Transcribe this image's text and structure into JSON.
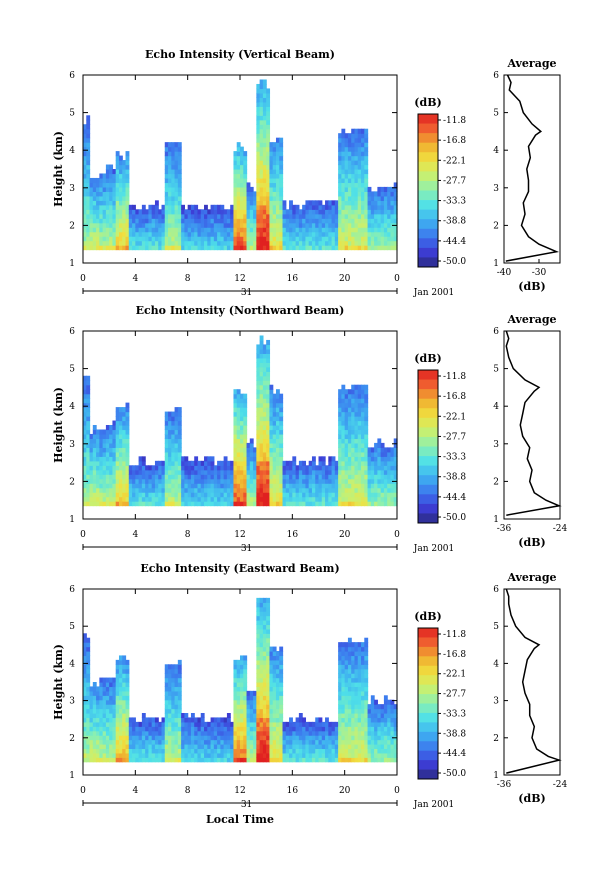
{
  "chart_data": [
    {
      "type": "heatmap",
      "title": "Echo Intensity (Vertical Beam)",
      "ylabel": "Height (km)",
      "xlabel": "",
      "x_ticks": [
        "0",
        "4",
        "8",
        "12",
        "16",
        "20",
        "0"
      ],
      "xlim": [
        0,
        24
      ],
      "y_ticks": [
        "1",
        "2",
        "3",
        "4",
        "5",
        "6"
      ],
      "ylim": [
        1,
        6
      ],
      "date_labels": {
        "day": "31",
        "month_year": "Jan 2001"
      },
      "colorbar": {
        "unit": "(dB)",
        "ticks": [
          "-11.8",
          "-16.8",
          "-22.1",
          "-27.7",
          "-33.3",
          "-38.8",
          "-44.4",
          "-50.0"
        ],
        "range": [
          -50.0,
          -11.8
        ],
        "colors": [
          "#2a2a80",
          "#3d3dd6",
          "#3c78ee",
          "#3fb0f0",
          "#4fe0e8",
          "#8cf0b0",
          "#c8f070",
          "#f0e040",
          "#f0b030",
          "#f06030",
          "#e02020"
        ]
      },
      "columns": [
        {
          "t": [
            0.0,
            0.5
          ],
          "top": 4.8,
          "peak": 1.6,
          "intensity": 0.55
        },
        {
          "t": [
            0.5,
            1.2
          ],
          "top": 3.3,
          "peak": 1.4,
          "intensity": 0.65
        },
        {
          "t": [
            1.2,
            2.6
          ],
          "top": 3.5,
          "peak": 1.5,
          "intensity": 0.6
        },
        {
          "t": [
            2.6,
            3.6
          ],
          "top": 3.9,
          "peak": 1.5,
          "intensity": 0.75
        },
        {
          "t": [
            3.6,
            6.2
          ],
          "top": 2.5,
          "peak": 1.3,
          "intensity": 0.45
        },
        {
          "t": [
            6.2,
            7.6
          ],
          "top": 4.2,
          "peak": 1.5,
          "intensity": 0.6
        },
        {
          "t": [
            7.6,
            11.4
          ],
          "top": 2.5,
          "peak": 1.3,
          "intensity": 0.4
        },
        {
          "t": [
            11.4,
            12.4
          ],
          "top": 4.1,
          "peak": 1.5,
          "intensity": 0.95
        },
        {
          "t": [
            12.4,
            13.2
          ],
          "top": 3.0,
          "peak": 1.4,
          "intensity": 0.6
        },
        {
          "t": [
            13.2,
            14.2
          ],
          "top": 5.8,
          "peak": 2.5,
          "intensity": 0.95
        },
        {
          "t": [
            14.2,
            15.2
          ],
          "top": 4.3,
          "peak": 1.5,
          "intensity": 0.7
        },
        {
          "t": [
            15.2,
            19.4
          ],
          "top": 2.6,
          "peak": 1.3,
          "intensity": 0.45
        },
        {
          "t": [
            19.4,
            21.8
          ],
          "top": 4.5,
          "peak": 1.5,
          "intensity": 0.65
        },
        {
          "t": [
            21.8,
            24.0
          ],
          "top": 3.0,
          "peak": 1.4,
          "intensity": 0.55
        }
      ],
      "profile": {
        "title": "Average",
        "xlabel": "(dB)",
        "x_ticks": [
          "-40",
          "-30"
        ],
        "xlim": [
          -40,
          -24
        ],
        "y_ticks": [
          "1",
          "2",
          "3",
          "4",
          "5",
          "6"
        ],
        "ylim": [
          1,
          6
        ],
        "height_km": [
          1.05,
          1.3,
          1.5,
          1.7,
          2.0,
          2.3,
          2.6,
          2.9,
          3.2,
          3.5,
          3.8,
          4.1,
          4.4,
          4.5,
          4.7,
          5.0,
          5.3,
          5.6,
          5.8,
          6.0
        ],
        "value_db": [
          -39.5,
          -25.0,
          -30.0,
          -33.0,
          -35.0,
          -34.0,
          -34.5,
          -33.0,
          -33.0,
          -33.5,
          -32.5,
          -33.0,
          -31.0,
          -29.5,
          -32.0,
          -34.5,
          -35.5,
          -38.5,
          -38.0,
          -39.0
        ]
      }
    },
    {
      "type": "heatmap",
      "title": "Echo Intensity (Northward Beam)",
      "ylabel": "Height (km)",
      "xlabel": "",
      "x_ticks": [
        "0",
        "4",
        "8",
        "12",
        "16",
        "20",
        "0"
      ],
      "xlim": [
        0,
        24
      ],
      "y_ticks": [
        "1",
        "2",
        "3",
        "4",
        "5",
        "6"
      ],
      "ylim": [
        1,
        6
      ],
      "date_labels": {
        "day": "31",
        "month_year": "Jan 2001"
      },
      "colorbar": {
        "unit": "(dB)",
        "ticks": [
          "-11.8",
          "-16.8",
          "-22.1",
          "-27.7",
          "-33.3",
          "-38.8",
          "-44.4",
          "-50.0"
        ],
        "range": [
          -50.0,
          -11.8
        ],
        "colors": [
          "#2a2a80",
          "#3d3dd6",
          "#3c78ee",
          "#3fb0f0",
          "#4fe0e8",
          "#8cf0b0",
          "#c8f070",
          "#f0e040",
          "#f0b030",
          "#f06030",
          "#e02020"
        ]
      },
      "columns": [
        {
          "t": [
            0.0,
            0.5
          ],
          "top": 4.7,
          "peak": 1.6,
          "intensity": 0.55
        },
        {
          "t": [
            0.5,
            1.2
          ],
          "top": 3.4,
          "peak": 1.4,
          "intensity": 0.65
        },
        {
          "t": [
            1.2,
            2.6
          ],
          "top": 3.5,
          "peak": 1.5,
          "intensity": 0.6
        },
        {
          "t": [
            2.6,
            3.6
          ],
          "top": 4.0,
          "peak": 1.5,
          "intensity": 0.75
        },
        {
          "t": [
            3.6,
            6.2
          ],
          "top": 2.5,
          "peak": 1.3,
          "intensity": 0.45
        },
        {
          "t": [
            6.2,
            7.6
          ],
          "top": 4.0,
          "peak": 1.5,
          "intensity": 0.6
        },
        {
          "t": [
            7.6,
            11.4
          ],
          "top": 2.6,
          "peak": 1.3,
          "intensity": 0.4
        },
        {
          "t": [
            11.4,
            12.4
          ],
          "top": 4.4,
          "peak": 1.5,
          "intensity": 0.95
        },
        {
          "t": [
            12.4,
            13.2
          ],
          "top": 3.0,
          "peak": 1.4,
          "intensity": 0.6
        },
        {
          "t": [
            13.2,
            14.2
          ],
          "top": 5.8,
          "peak": 2.5,
          "intensity": 0.95
        },
        {
          "t": [
            14.2,
            15.2
          ],
          "top": 4.4,
          "peak": 1.5,
          "intensity": 0.7
        },
        {
          "t": [
            15.2,
            19.4
          ],
          "top": 2.6,
          "peak": 1.3,
          "intensity": 0.45
        },
        {
          "t": [
            19.4,
            21.8
          ],
          "top": 4.5,
          "peak": 1.5,
          "intensity": 0.65
        },
        {
          "t": [
            21.8,
            24.0
          ],
          "top": 3.0,
          "peak": 1.4,
          "intensity": 0.55
        }
      ],
      "profile": {
        "title": "Average",
        "xlabel": "(dB)",
        "x_ticks": [
          "-36",
          "-24"
        ],
        "xlim": [
          -36,
          -24
        ],
        "y_ticks": [
          "1",
          "2",
          "3",
          "4",
          "5",
          "6"
        ],
        "ylim": [
          1,
          6
        ],
        "height_km": [
          1.1,
          1.35,
          1.5,
          1.7,
          2.0,
          2.3,
          2.6,
          2.9,
          3.2,
          3.5,
          3.8,
          4.1,
          4.4,
          4.5,
          4.7,
          5.0,
          5.3,
          5.6,
          5.8,
          6.0
        ],
        "value_db": [
          -35.5,
          -24.2,
          -27.0,
          -29.5,
          -30.5,
          -30.0,
          -31.0,
          -30.5,
          -32.0,
          -32.5,
          -32.0,
          -31.5,
          -29.5,
          -28.5,
          -31.5,
          -34.0,
          -35.0,
          -35.5,
          -35.0,
          -35.5
        ]
      }
    },
    {
      "type": "heatmap",
      "title": "Echo Intensity (Eastward Beam)",
      "ylabel": "Height (km)",
      "xlabel": "Local Time",
      "x_ticks": [
        "0",
        "4",
        "8",
        "12",
        "16",
        "20",
        "0"
      ],
      "xlim": [
        0,
        24
      ],
      "y_ticks": [
        "1",
        "2",
        "3",
        "4",
        "5",
        "6"
      ],
      "ylim": [
        1,
        6
      ],
      "date_labels": {
        "day": "31",
        "month_year": "Jan 2001"
      },
      "colorbar": {
        "unit": "(dB)",
        "ticks": [
          "-11.8",
          "-16.8",
          "-22.1",
          "-27.7",
          "-33.3",
          "-38.8",
          "-44.4",
          "-50.0"
        ],
        "range": [
          -50.0,
          -11.8
        ],
        "colors": [
          "#2a2a80",
          "#3d3dd6",
          "#3c78ee",
          "#3fb0f0",
          "#4fe0e8",
          "#8cf0b0",
          "#c8f070",
          "#f0e040",
          "#f0b030",
          "#f06030",
          "#e02020"
        ]
      },
      "columns": [
        {
          "t": [
            0.0,
            0.5
          ],
          "top": 4.8,
          "peak": 1.6,
          "intensity": 0.55
        },
        {
          "t": [
            0.5,
            1.2
          ],
          "top": 3.5,
          "peak": 1.4,
          "intensity": 0.65
        },
        {
          "t": [
            1.2,
            2.6
          ],
          "top": 3.6,
          "peak": 1.5,
          "intensity": 0.6
        },
        {
          "t": [
            2.6,
            3.6
          ],
          "top": 4.1,
          "peak": 1.5,
          "intensity": 0.8
        },
        {
          "t": [
            3.6,
            6.2
          ],
          "top": 2.5,
          "peak": 1.3,
          "intensity": 0.45
        },
        {
          "t": [
            6.2,
            7.6
          ],
          "top": 4.0,
          "peak": 1.5,
          "intensity": 0.6
        },
        {
          "t": [
            7.6,
            11.4
          ],
          "top": 2.6,
          "peak": 1.3,
          "intensity": 0.4
        },
        {
          "t": [
            11.4,
            12.4
          ],
          "top": 4.2,
          "peak": 1.5,
          "intensity": 0.9
        },
        {
          "t": [
            12.4,
            13.2
          ],
          "top": 3.2,
          "peak": 1.4,
          "intensity": 0.6
        },
        {
          "t": [
            13.2,
            14.2
          ],
          "top": 5.8,
          "peak": 2.5,
          "intensity": 0.95
        },
        {
          "t": [
            14.2,
            15.2
          ],
          "top": 4.5,
          "peak": 1.5,
          "intensity": 0.7
        },
        {
          "t": [
            15.2,
            19.4
          ],
          "top": 2.5,
          "peak": 1.3,
          "intensity": 0.45
        },
        {
          "t": [
            19.4,
            21.8
          ],
          "top": 4.6,
          "peak": 1.5,
          "intensity": 0.65
        },
        {
          "t": [
            21.8,
            24.0
          ],
          "top": 3.0,
          "peak": 1.4,
          "intensity": 0.55
        }
      ],
      "profile": {
        "title": "Average",
        "xlabel": "(dB)",
        "x_ticks": [
          "-36",
          "-24"
        ],
        "xlim": [
          -36,
          -24
        ],
        "y_ticks": [
          "1",
          "2",
          "3",
          "4",
          "5",
          "6"
        ],
        "ylim": [
          1,
          6
        ],
        "height_km": [
          1.05,
          1.4,
          1.5,
          1.7,
          2.0,
          2.3,
          2.6,
          2.9,
          3.2,
          3.5,
          3.8,
          4.1,
          4.4,
          4.5,
          4.7,
          5.0,
          5.3,
          5.6,
          5.8,
          6.0
        ],
        "value_db": [
          -35.5,
          -24.2,
          -26.5,
          -29.0,
          -30.0,
          -29.5,
          -30.5,
          -30.5,
          -31.5,
          -32.0,
          -31.5,
          -31.0,
          -29.5,
          -28.5,
          -31.5,
          -33.5,
          -34.5,
          -35.0,
          -35.0,
          -35.5
        ]
      }
    }
  ]
}
